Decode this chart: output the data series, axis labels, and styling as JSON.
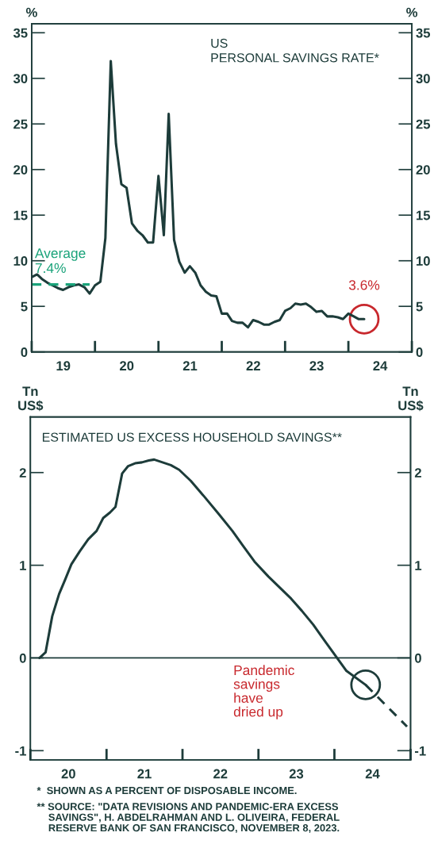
{
  "chart_data": [
    {
      "type": "line",
      "title": "US\nPERSONAL SAVINGS RATE*",
      "ylabel": "%",
      "y2label": "%",
      "xlim": [
        "2019-01-01",
        "2025-01-01"
      ],
      "xticks": [
        {
          "value": "2019-01-01",
          "label": null
        },
        {
          "value": "2019-07-02",
          "label": "19"
        },
        {
          "value": "2020-01-01",
          "label": null
        },
        {
          "value": "2020-07-02",
          "label": "20"
        },
        {
          "value": "2021-01-01",
          "label": null
        },
        {
          "value": "2021-07-02",
          "label": "21"
        },
        {
          "value": "2022-01-01",
          "label": null
        },
        {
          "value": "2022-07-02",
          "label": "22"
        },
        {
          "value": "2023-01-01",
          "label": null
        },
        {
          "value": "2023-07-02",
          "label": "23"
        },
        {
          "value": "2024-01-01",
          "label": null
        },
        {
          "value": "2024-07-02",
          "label": "24"
        },
        {
          "value": "2025-01-01",
          "label": null
        }
      ],
      "ylim": [
        0,
        36
      ],
      "yticks": [
        0,
        5,
        10,
        15,
        20,
        25,
        30,
        35
      ],
      "y2lim": [
        0,
        36
      ],
      "y2ticks": [
        0,
        5,
        10,
        15,
        20,
        25,
        30,
        35
      ],
      "series": [
        {
          "color": "#1d3c3a",
          "x": [
            "2019-01",
            "2019-02",
            "2019-03",
            "2019-04",
            "2019-05",
            "2019-06",
            "2019-07",
            "2019-08",
            "2019-09",
            "2019-10",
            "2019-11",
            "2019-12",
            "2020-01",
            "2020-02",
            "2020-03",
            "2020-04",
            "2020-05",
            "2020-06",
            "2020-07",
            "2020-08",
            "2020-09",
            "2020-10",
            "2020-11",
            "2020-12",
            "2021-01",
            "2021-02",
            "2021-03",
            "2021-04",
            "2021-05",
            "2021-06",
            "2021-07",
            "2021-08",
            "2021-09",
            "2021-10",
            "2021-11",
            "2021-12",
            "2022-01",
            "2022-02",
            "2022-03",
            "2022-04",
            "2022-05",
            "2022-06",
            "2022-07",
            "2022-08",
            "2022-09",
            "2022-10",
            "2022-11",
            "2022-12",
            "2023-01",
            "2023-02",
            "2023-03",
            "2023-04",
            "2023-05",
            "2023-06",
            "2023-07",
            "2023-08",
            "2023-09",
            "2023-10",
            "2023-11",
            "2023-12",
            "2024-01",
            "2024-02",
            "2024-03",
            "2024-04"
          ],
          "values": [
            8.2,
            8.5,
            8.0,
            7.6,
            7.3,
            7.0,
            6.8,
            7.1,
            7.3,
            7.4,
            7.1,
            6.4,
            7.3,
            7.7,
            12.5,
            31.9,
            22.8,
            18.4,
            18.0,
            14.1,
            13.3,
            12.8,
            12.0,
            12.0,
            19.3,
            12.8,
            26.1,
            12.3,
            9.9,
            8.7,
            9.4,
            8.7,
            7.3,
            6.6,
            6.2,
            6.1,
            4.2,
            4.2,
            3.4,
            3.2,
            3.2,
            2.7,
            3.5,
            3.3,
            3.0,
            3.0,
            3.3,
            3.5,
            4.5,
            4.8,
            5.3,
            5.2,
            5.3,
            4.9,
            4.4,
            4.5,
            3.9,
            3.9,
            3.8,
            3.6,
            4.2,
            3.9,
            3.6,
            3.6
          ]
        },
        {
          "color": "#1aa37a",
          "line_style": "dashed",
          "x": [
            "2019-01",
            "2019-12"
          ],
          "values": [
            7.4,
            7.4
          ]
        }
      ],
      "annotations": [
        {
          "text": "Average\n7.4%",
          "x": "2019-02",
          "y": 7.4
        },
        {
          "text": "3.6%",
          "x": "2024-04",
          "y": 3.6
        }
      ]
    },
    {
      "type": "line",
      "title": "ESTIMATED US EXCESS HOUSEHOLD SAVINGS**",
      "ylabel": "Tn\nUS$",
      "y2label": "Tn\nUS$",
      "xlim": [
        "2020-01-01",
        "2025-01-01"
      ],
      "xticks": [
        {
          "value": "2020-01-01",
          "label": null
        },
        {
          "value": "2020-07-02",
          "label": "20"
        },
        {
          "value": "2021-01-01",
          "label": null
        },
        {
          "value": "2021-07-02",
          "label": "21"
        },
        {
          "value": "2022-01-01",
          "label": null
        },
        {
          "value": "2022-07-02",
          "label": "22"
        },
        {
          "value": "2023-01-01",
          "label": null
        },
        {
          "value": "2023-07-02",
          "label": "23"
        },
        {
          "value": "2024-01-01",
          "label": null
        },
        {
          "value": "2024-07-02",
          "label": "24"
        },
        {
          "value": "2025-01-01",
          "label": null
        }
      ],
      "ylim": [
        -1.1,
        2.6
      ],
      "yticks": [
        -1,
        0,
        1,
        2
      ],
      "y2lim": [
        -1.1,
        2.6
      ],
      "y2ticks": [
        -1,
        0,
        1,
        2
      ],
      "ref_lines": [
        {
          "axis": "y",
          "value": 0,
          "color": "#1d3c3a"
        }
      ],
      "series": [
        {
          "color": "#1d3c3a",
          "x": [
            "2020-02-14",
            "2020-03-14",
            "2020-04-15",
            "2020-05-18",
            "2020-06-17",
            "2020-07-16",
            "2020-08-25",
            "2020-10-05",
            "2020-11-14",
            "2020-12-16",
            "2021-01-18",
            "2021-02-13",
            "2021-03-17",
            "2021-04-15",
            "2021-05-18",
            "2021-06-20",
            "2021-07-23",
            "2021-08-18",
            "2021-09-27",
            "2021-11-06",
            "2021-12-16",
            "2022-02-10",
            "2022-04-16",
            "2022-06-25",
            "2022-08-29",
            "2022-10-19",
            "2022-12-13",
            "2023-02-17",
            "2023-04-13",
            "2023-06-07",
            "2023-07-28",
            "2023-09-21",
            "2023-11-14",
            "2024-01-04",
            "2024-02-28",
            "2024-05-30"
          ],
          "values": [
            0.0,
            0.06,
            0.45,
            0.69,
            0.85,
            1.01,
            1.15,
            1.28,
            1.37,
            1.51,
            1.57,
            1.63,
            1.99,
            2.07,
            2.1,
            2.11,
            2.13,
            2.14,
            2.11,
            2.08,
            2.03,
            1.91,
            1.74,
            1.55,
            1.37,
            1.21,
            1.04,
            0.88,
            0.76,
            0.64,
            0.51,
            0.36,
            0.19,
            0.03,
            -0.14,
            -0.29
          ]
        },
        {
          "color": "#1d3c3a",
          "line_style": "dashed",
          "x": [
            "2024-05-30",
            "2024-12-15"
          ],
          "values": [
            -0.29,
            -0.74
          ]
        }
      ],
      "annotations": [
        "Pandemic\nsavings\nhave\ndried up",
        "*  SHOWN AS A PERCENT OF DISPOSABLE INCOME.",
        "** SOURCE: \"DATA REVISIONS AND PANDEMIC-ERA EXCESS\n    SAVINGS\", H. ABDELRAHMAN AND L. OLIVEIRA, FEDERAL\n    RESERVE BANK OF SAN FRANCISCO, NOVEMBER 8, 2023."
      ]
    }
  ]
}
